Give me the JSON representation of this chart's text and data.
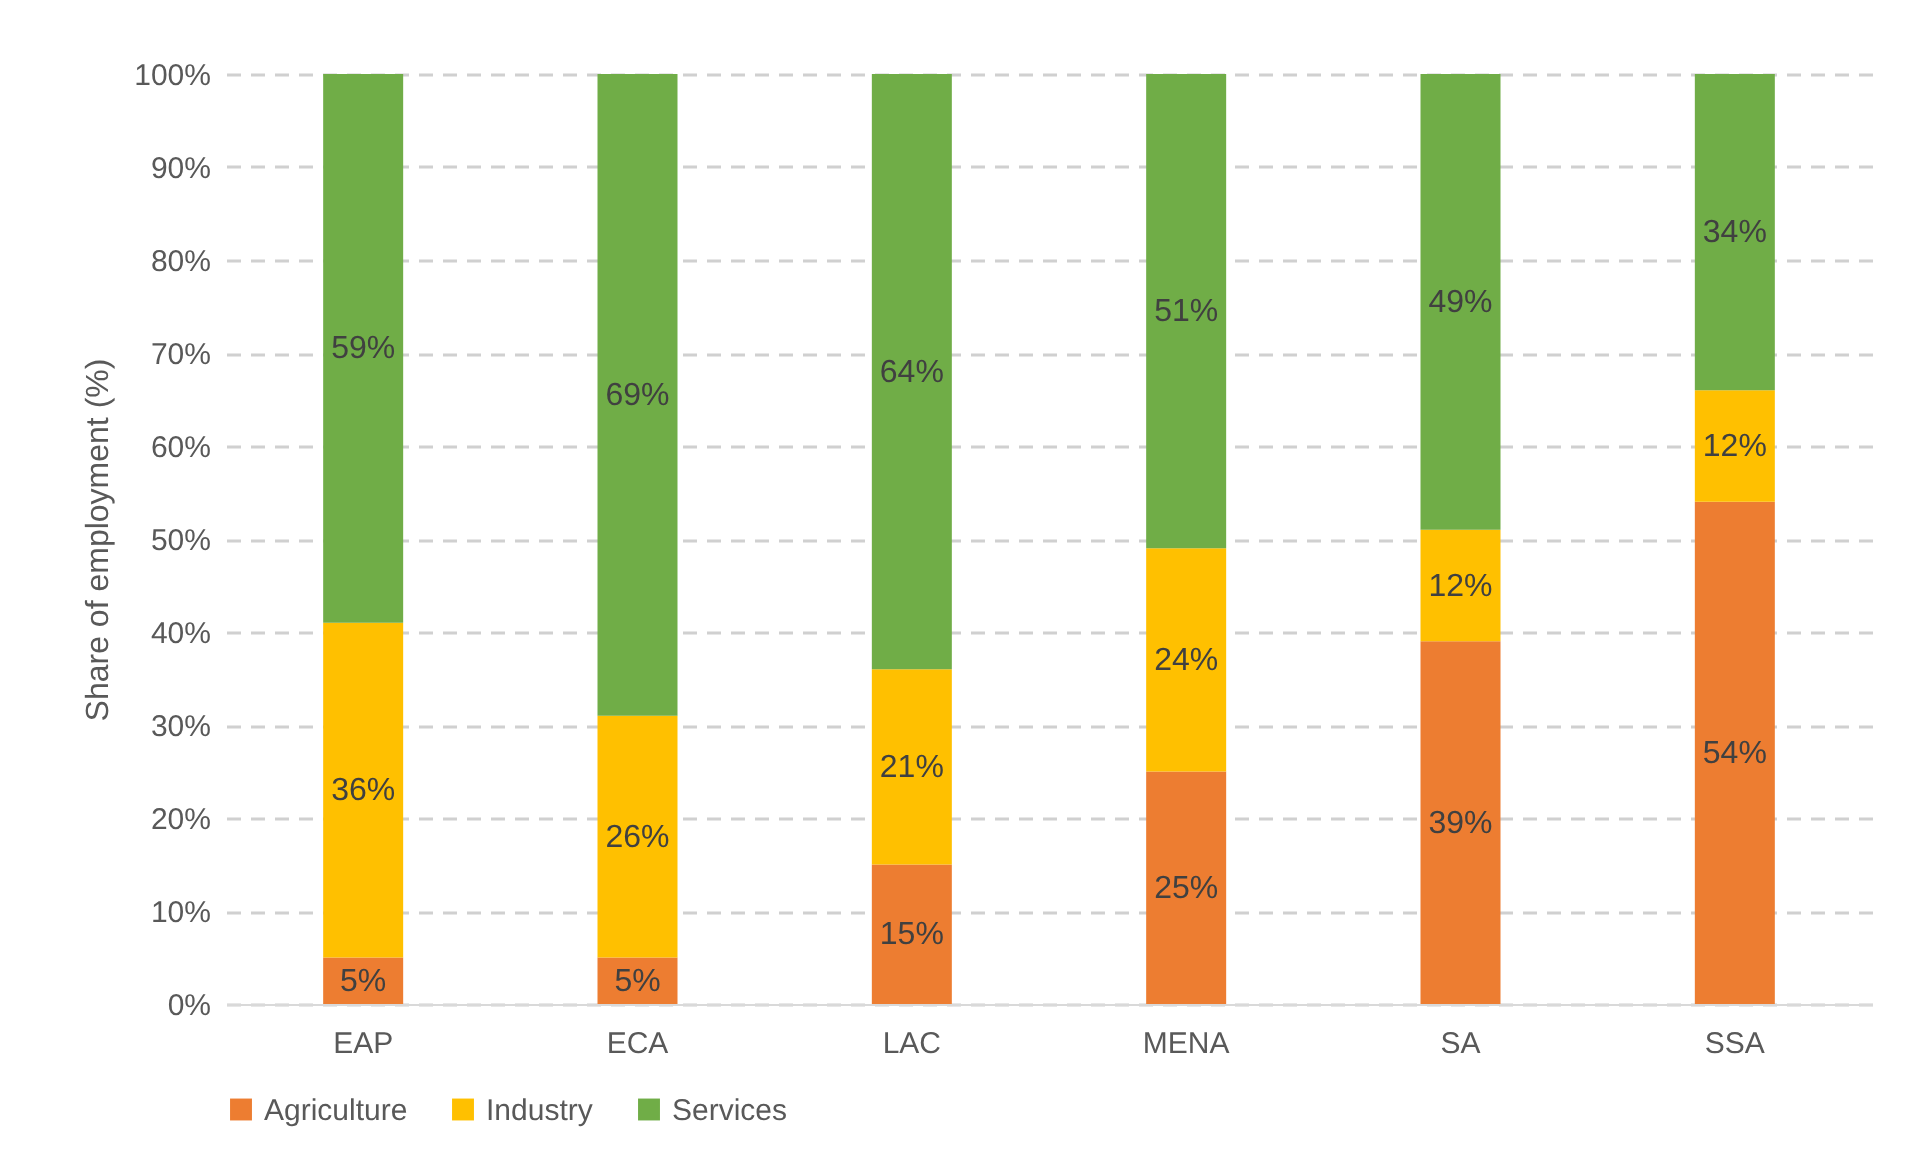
{
  "chart_data": {
    "type": "bar",
    "stacked": true,
    "ylabel": "Share of employment (%)",
    "categories": [
      "EAP",
      "ECA",
      "LAC",
      "MENA",
      "SA",
      "SSA"
    ],
    "series": [
      {
        "name": "Agriculture",
        "color": "#ed7d31",
        "values": [
          5,
          5,
          15,
          25,
          39,
          54
        ],
        "value_labels": [
          "5%",
          "5%",
          "15%",
          "25%",
          "39%",
          "54%"
        ]
      },
      {
        "name": "Industry",
        "color": "#ffc000",
        "values": [
          36,
          26,
          21,
          24,
          12,
          12
        ],
        "value_labels": [
          "36%",
          "26%",
          "21%",
          "24%",
          "12%",
          "12%"
        ]
      },
      {
        "name": "Services",
        "color": "#70ad47",
        "values": [
          59,
          69,
          64,
          51,
          49,
          34
        ],
        "value_labels": [
          "59%",
          "69%",
          "64%",
          "51%",
          "49%",
          "34%"
        ]
      }
    ],
    "ylim": [
      0,
      100
    ],
    "yticks": [
      {
        "value": 0,
        "label": "0%"
      },
      {
        "value": 10,
        "label": "10%"
      },
      {
        "value": 20,
        "label": "20%"
      },
      {
        "value": 30,
        "label": "30%"
      },
      {
        "value": 40,
        "label": "40%"
      },
      {
        "value": 50,
        "label": "50%"
      },
      {
        "value": 60,
        "label": "60%"
      },
      {
        "value": 70,
        "label": "70%"
      },
      {
        "value": 80,
        "label": "80%"
      },
      {
        "value": 90,
        "label": "90%"
      },
      {
        "value": 100,
        "label": "100%"
      }
    ],
    "grid": "y",
    "legend": "bottom"
  }
}
